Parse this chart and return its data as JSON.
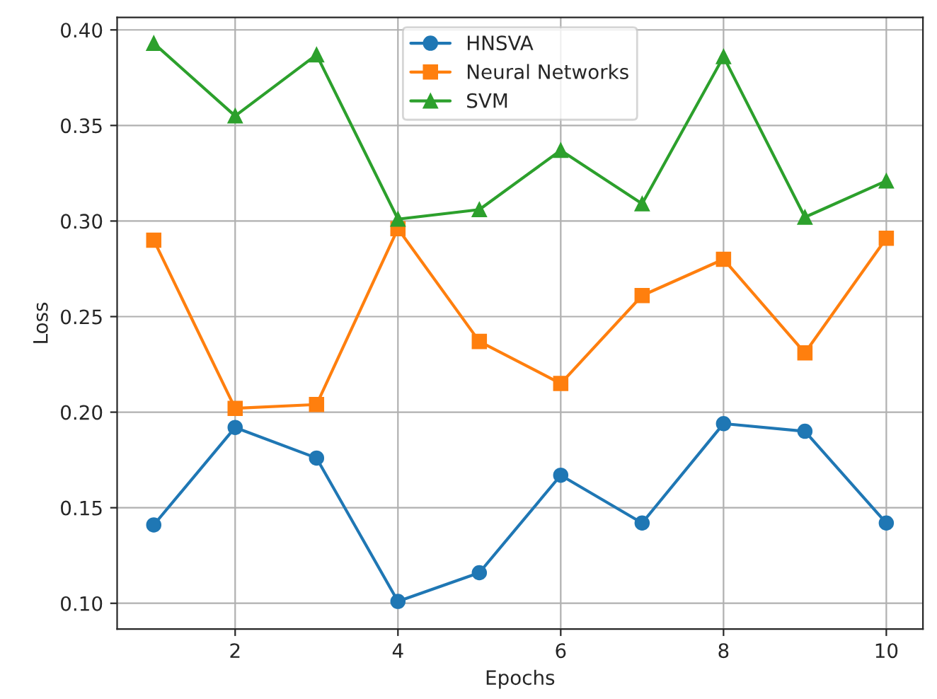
{
  "chart_data": {
    "type": "line",
    "xlabel": "Epochs",
    "ylabel": "Loss",
    "x": [
      1,
      2,
      3,
      4,
      5,
      6,
      7,
      8,
      9,
      10
    ],
    "series": [
      {
        "name": "HNSVA",
        "color": "#1f77b4",
        "marker": "circle",
        "values": [
          0.141,
          0.192,
          0.176,
          0.101,
          0.116,
          0.167,
          0.142,
          0.194,
          0.19,
          0.142
        ]
      },
      {
        "name": "Neural Networks",
        "color": "#ff7f0e",
        "marker": "square",
        "values": [
          0.29,
          0.202,
          0.204,
          0.296,
          0.237,
          0.215,
          0.261,
          0.28,
          0.231,
          0.291
        ]
      },
      {
        "name": "SVM",
        "color": "#2ca02c",
        "marker": "triangle",
        "values": [
          0.393,
          0.355,
          0.387,
          0.301,
          0.306,
          0.337,
          0.309,
          0.386,
          0.302,
          0.321
        ]
      }
    ],
    "xlim": [
      0.55,
      10.45
    ],
    "ylim": [
      0.0865,
      0.4065
    ],
    "xticks": [
      2,
      4,
      6,
      8,
      10
    ],
    "yticks": [
      {
        "value": 0.1,
        "label": "0.10"
      },
      {
        "value": 0.15,
        "label": "0.15"
      },
      {
        "value": 0.2,
        "label": "0.20"
      },
      {
        "value": 0.25,
        "label": "0.25"
      },
      {
        "value": 0.3,
        "label": "0.30"
      },
      {
        "value": 0.35,
        "label": "0.35"
      },
      {
        "value": 0.4,
        "label": "0.40"
      }
    ],
    "grid": true,
    "legend": "top",
    "line_style": "solid"
  }
}
